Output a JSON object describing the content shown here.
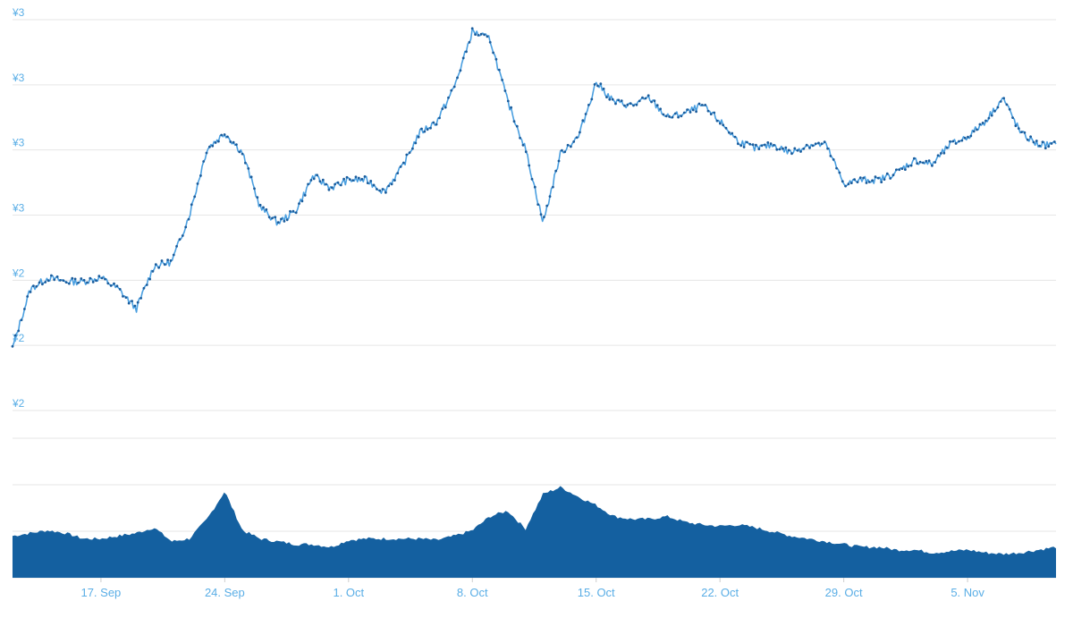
{
  "chart_data": [
    {
      "type": "line",
      "title": "",
      "xlabel": "",
      "ylabel": "",
      "y_tick_labels": [
        "¥3",
        "¥3",
        "¥3",
        "¥3",
        "¥2",
        "¥2",
        "¥2"
      ],
      "x_tick_labels": [
        "17. Sep",
        "24. Sep",
        "1. Oct",
        "8. Oct",
        "15. Oct",
        "22. Oct",
        "29. Oct",
        "5. Nov"
      ],
      "x_range": [
        "2018-09-12",
        "2018-11-10"
      ],
      "ylim": [
        2.0,
        3.0
      ],
      "grid": true,
      "legend": "none",
      "colors": {
        "line": "#4a9fe0",
        "markers": "#1a5c9c"
      },
      "series": [
        {
          "x": [
            "2018-09-12",
            "2018-09-13",
            "2018-09-14",
            "2018-09-15",
            "2018-09-16",
            "2018-09-17",
            "2018-09-18",
            "2018-09-19",
            "2018-09-20",
            "2018-09-21",
            "2018-09-22",
            "2018-09-23",
            "2018-09-24",
            "2018-09-25",
            "2018-09-26",
            "2018-09-27",
            "2018-09-28",
            "2018-09-29",
            "2018-09-30",
            "2018-10-01",
            "2018-10-02",
            "2018-10-03",
            "2018-10-04",
            "2018-10-05",
            "2018-10-06",
            "2018-10-07",
            "2018-10-08",
            "2018-10-09",
            "2018-10-10",
            "2018-10-11",
            "2018-10-12",
            "2018-10-13",
            "2018-10-14",
            "2018-10-15",
            "2018-10-16",
            "2018-10-17",
            "2018-10-18",
            "2018-10-19",
            "2018-10-20",
            "2018-10-21",
            "2018-10-22",
            "2018-10-23",
            "2018-10-24",
            "2018-10-25",
            "2018-10-26",
            "2018-10-27",
            "2018-10-28",
            "2018-10-29",
            "2018-10-30",
            "2018-10-31",
            "2018-11-01",
            "2018-11-02",
            "2018-11-03",
            "2018-11-04",
            "2018-11-05",
            "2018-11-06",
            "2018-11-07",
            "2018-11-08",
            "2018-11-09",
            "2018-11-10"
          ],
          "values": [
            2.16,
            2.31,
            2.34,
            2.33,
            2.33,
            2.34,
            2.31,
            2.26,
            2.37,
            2.38,
            2.5,
            2.67,
            2.71,
            2.66,
            2.52,
            2.48,
            2.51,
            2.6,
            2.57,
            2.59,
            2.59,
            2.56,
            2.62,
            2.71,
            2.74,
            2.83,
            2.97,
            2.95,
            2.79,
            2.67,
            2.48,
            2.66,
            2.7,
            2.84,
            2.79,
            2.78,
            2.8,
            2.75,
            2.76,
            2.78,
            2.74,
            2.69,
            2.67,
            2.68,
            2.66,
            2.68,
            2.68,
            2.58,
            2.59,
            2.59,
            2.61,
            2.64,
            2.63,
            2.68,
            2.7,
            2.74,
            2.8,
            2.71,
            2.68,
            2.68
          ]
        }
      ]
    },
    {
      "type": "area",
      "title": "",
      "xlabel": "",
      "ylabel": "",
      "ylim": [
        0,
        100
      ],
      "grid": true,
      "legend": "none",
      "colors": {
        "fill": "#1460a0"
      },
      "series": [
        {
          "x": [
            "2018-09-12",
            "2018-09-13",
            "2018-09-14",
            "2018-09-15",
            "2018-09-16",
            "2018-09-17",
            "2018-09-18",
            "2018-09-19",
            "2018-09-20",
            "2018-09-21",
            "2018-09-22",
            "2018-09-23",
            "2018-09-24",
            "2018-09-25",
            "2018-09-26",
            "2018-09-27",
            "2018-09-28",
            "2018-09-29",
            "2018-09-30",
            "2018-10-01",
            "2018-10-02",
            "2018-10-03",
            "2018-10-04",
            "2018-10-05",
            "2018-10-06",
            "2018-10-07",
            "2018-10-08",
            "2018-10-09",
            "2018-10-10",
            "2018-10-11",
            "2018-10-12",
            "2018-10-13",
            "2018-10-14",
            "2018-10-15",
            "2018-10-16",
            "2018-10-17",
            "2018-10-18",
            "2018-10-19",
            "2018-10-20",
            "2018-10-21",
            "2018-10-22",
            "2018-10-23",
            "2018-10-24",
            "2018-10-25",
            "2018-10-26",
            "2018-10-27",
            "2018-10-28",
            "2018-10-29",
            "2018-10-30",
            "2018-10-31",
            "2018-11-01",
            "2018-11-02",
            "2018-11-03",
            "2018-11-04",
            "2018-11-05",
            "2018-11-06",
            "2018-11-07",
            "2018-11-08",
            "2018-11-09",
            "2018-11-10"
          ],
          "values": [
            30,
            32,
            34,
            32,
            28,
            28,
            30,
            32,
            36,
            26,
            28,
            42,
            62,
            34,
            28,
            26,
            24,
            24,
            22,
            27,
            28,
            28,
            28,
            28,
            27,
            30,
            34,
            44,
            48,
            35,
            60,
            65,
            58,
            52,
            44,
            42,
            42,
            44,
            40,
            38,
            37,
            38,
            36,
            33,
            30,
            28,
            26,
            24,
            22,
            22,
            20,
            20,
            18,
            19,
            20,
            18,
            17,
            18,
            20,
            22
          ]
        }
      ]
    }
  ]
}
